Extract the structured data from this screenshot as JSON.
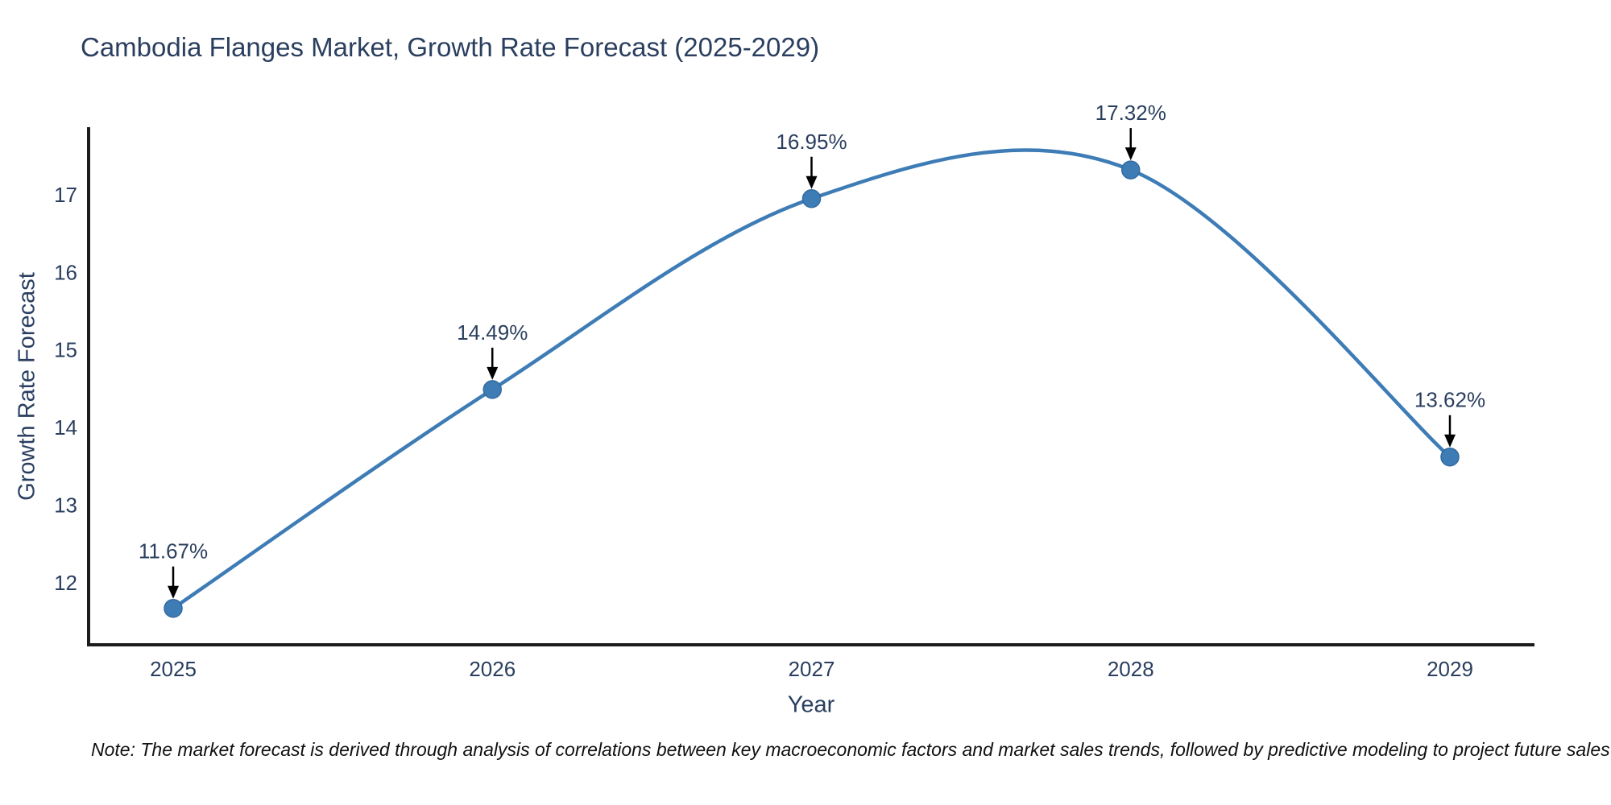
{
  "figure": {
    "note": "Note: The market forecast is derived through analysis of correlations between key macroeconomic factors and market sales trends, followed by predictive modeling to project future sales"
  },
  "chart_data": {
    "type": "line",
    "title": "Cambodia Flanges Market, Growth Rate Forecast (2025-2029)",
    "xlabel": "Year",
    "ylabel": "Growth Rate Forecast",
    "categories": [
      "2025",
      "2026",
      "2027",
      "2028",
      "2029"
    ],
    "values": [
      11.67,
      14.49,
      16.95,
      17.32,
      13.62
    ],
    "point_labels": [
      "11.67%",
      "14.49%",
      "16.95%",
      "17.32%",
      "13.62%"
    ],
    "yticks": [
      12,
      13,
      14,
      15,
      16,
      17
    ],
    "ylim": [
      11.2,
      17.85
    ],
    "line_shape": "spline",
    "grid": false,
    "legend_position": "none",
    "marker_style": "circle",
    "annotation_arrow": "down-arrow",
    "colors": {
      "line": "#3e7cb6",
      "marker_fill": "#3e7cb6",
      "marker_edge": "#336a9e",
      "axis_line": "#1c1c1c",
      "tick_text": "#2a3f5f",
      "annotation_text": "#2a3f5f",
      "arrow": "#000000",
      "title_text": "#2a3f5f",
      "note_text": "#111111",
      "background": "#ffffff"
    }
  }
}
